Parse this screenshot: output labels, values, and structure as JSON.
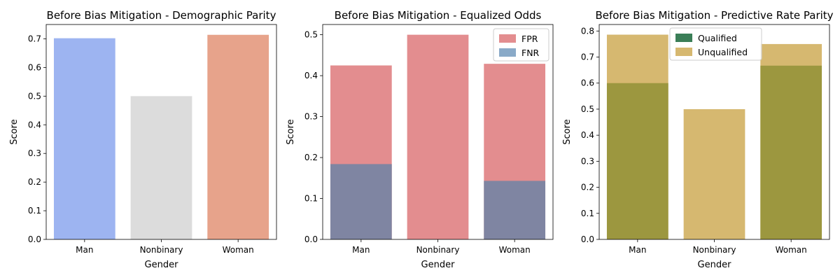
{
  "chart_data": [
    {
      "type": "bar",
      "title": "Before Bias Mitigation - Demographic Parity",
      "xlabel": "Gender",
      "ylabel": "Score",
      "categories": [
        "Man",
        "Nonbinary",
        "Woman"
      ],
      "ylim": [
        0,
        0.75
      ],
      "yticks": [
        "0.0",
        "0.1",
        "0.2",
        "0.3",
        "0.4",
        "0.5",
        "0.6",
        "0.7"
      ],
      "series": [
        {
          "values": [
            0.702,
            0.5,
            0.714
          ],
          "colors": [
            "#9db4f1",
            "#dcdcdc",
            "#e7a38b"
          ]
        }
      ],
      "legend": null,
      "grid": false
    },
    {
      "type": "bar",
      "title": "Before Bias Mitigation - Equalized Odds",
      "xlabel": "Gender",
      "ylabel": "Score",
      "categories": [
        "Man",
        "Nonbinary",
        "Woman"
      ],
      "ylim": [
        0,
        0.525
      ],
      "yticks": [
        "0.0",
        "0.1",
        "0.2",
        "0.3",
        "0.4",
        "0.5"
      ],
      "series": [
        {
          "name": "FPR",
          "values": [
            0.425,
            0.5,
            0.429
          ],
          "color": "#e38d8f"
        },
        {
          "name": "FNR",
          "values": [
            0.184,
            0.0,
            0.143
          ],
          "color": "#8aaac8",
          "overlap_color": "#7f85a2"
        }
      ],
      "legend": "top-right",
      "grid": false
    },
    {
      "type": "bar",
      "title": "Before Bias Mitigation - Predictive Rate Parity",
      "xlabel": "Gender",
      "ylabel": "Score",
      "categories": [
        "Man",
        "Nonbinary",
        "Woman"
      ],
      "ylim": [
        0,
        0.825
      ],
      "yticks": [
        "0.0",
        "0.1",
        "0.2",
        "0.3",
        "0.4",
        "0.5",
        "0.6",
        "0.7",
        "0.8"
      ],
      "series": [
        {
          "name": "Qualified",
          "values": [
            0.6,
            0.0,
            0.667
          ],
          "color": "#3a7e57",
          "overlap_color": "#9c973f"
        },
        {
          "name": "Unqualified",
          "values": [
            0.786,
            0.5,
            0.75
          ],
          "color": "#d6b870"
        }
      ],
      "legend": "top-center",
      "grid": false
    }
  ]
}
